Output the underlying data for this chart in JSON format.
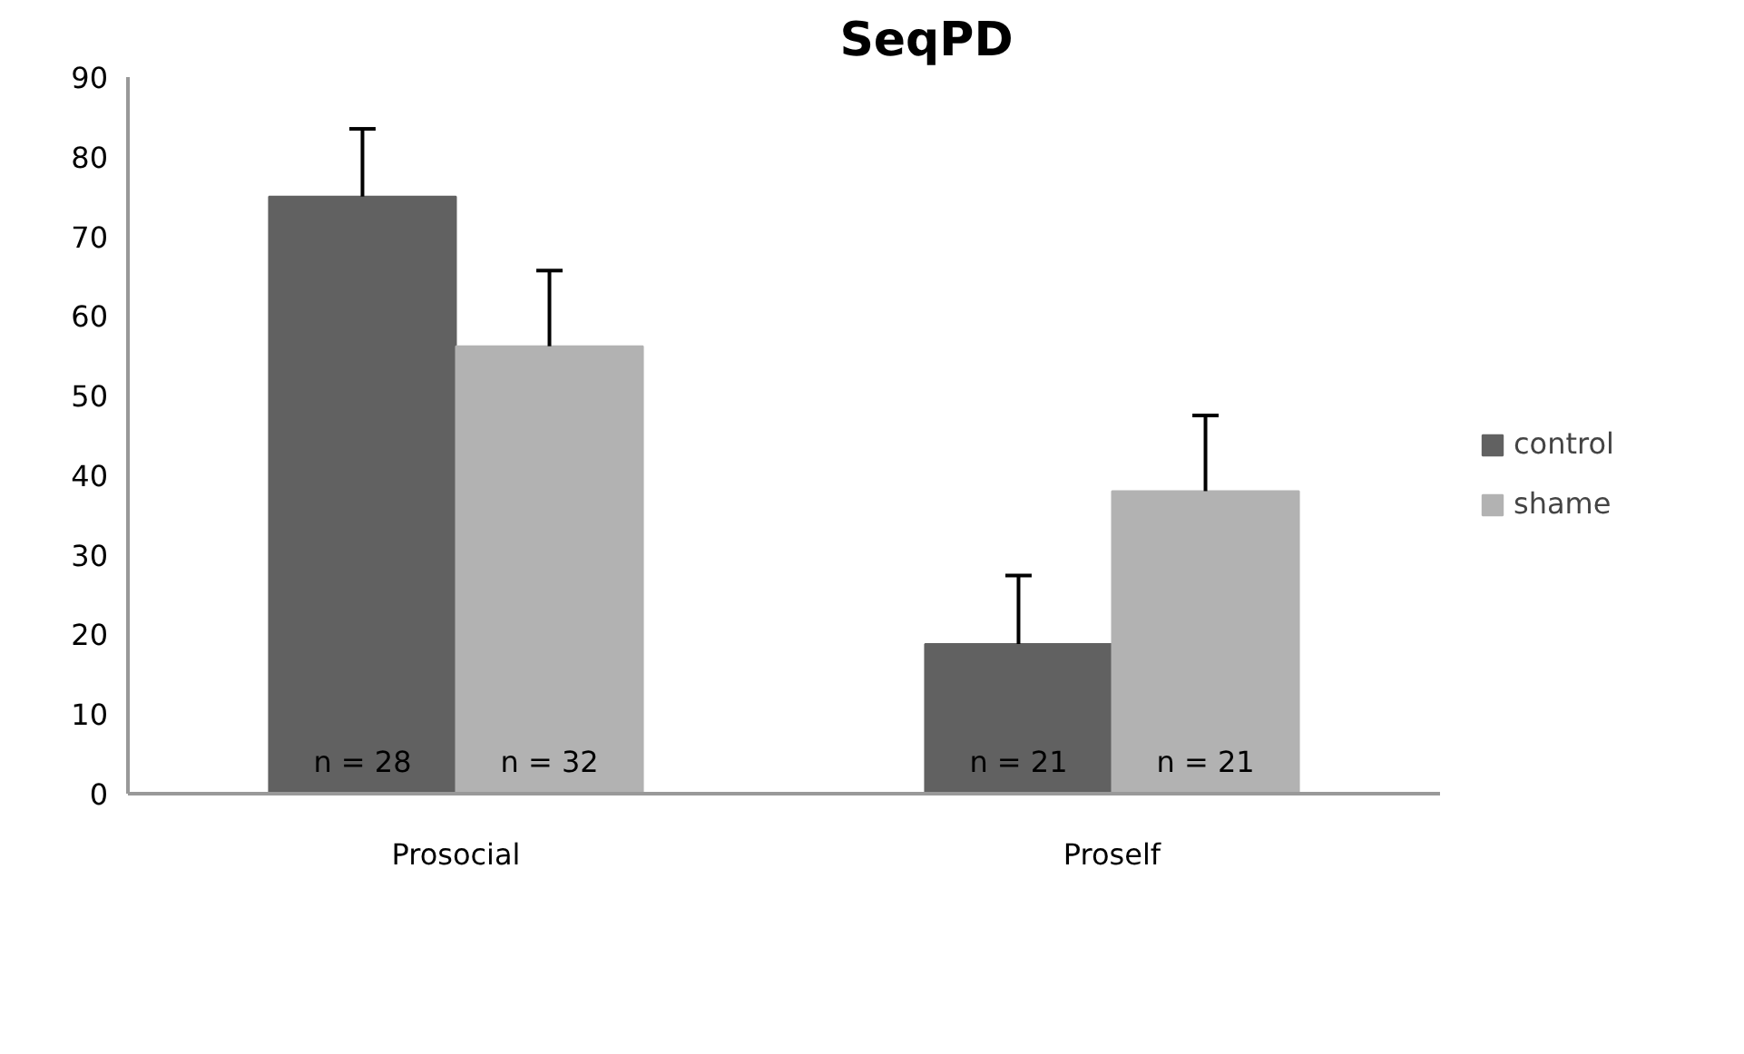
{
  "chart_data": {
    "type": "bar",
    "title": "SeqPD",
    "categories": [
      "Prosocial",
      "Proself"
    ],
    "series": [
      {
        "name": "control",
        "color": "#616161",
        "values": [
          75.0,
          18.8
        ],
        "errors": [
          [
            75.0,
            83.5
          ],
          [
            18.8,
            27.4
          ]
        ]
      },
      {
        "name": "shame",
        "color": "#b2b2b2",
        "values": [
          56.2,
          38.0
        ],
        "errors": [
          [
            56.2,
            65.7
          ],
          [
            38.0,
            47.5
          ]
        ]
      }
    ],
    "annotations": [
      "n = 28",
      "n = 32",
      "n = 21",
      "n = 21"
    ],
    "ylim": [
      0,
      90
    ],
    "yticks": [
      0,
      10,
      20,
      30,
      40,
      50,
      60,
      70,
      80,
      90
    ],
    "grid": false,
    "legend": "right"
  }
}
